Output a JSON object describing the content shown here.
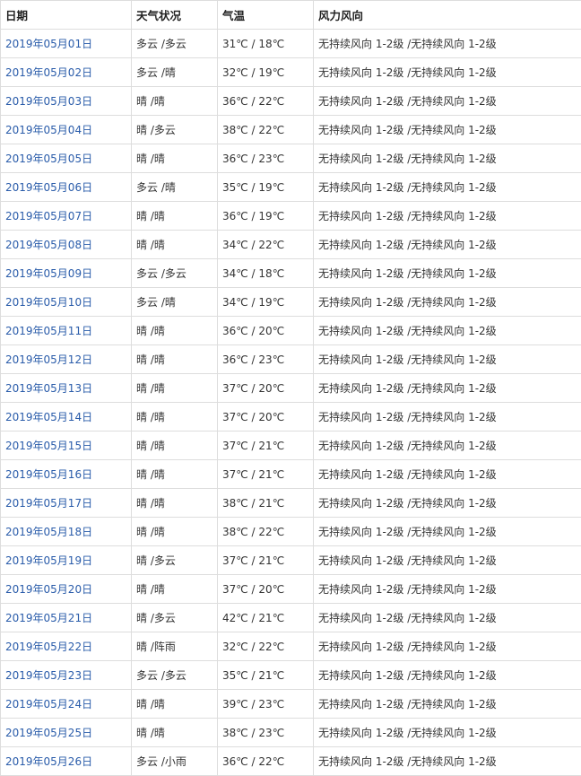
{
  "headers": [
    "日期",
    "天气状况",
    "气温",
    "风力风向"
  ],
  "link_color": "#2a5caa",
  "rows": [
    [
      "2019年05月01日",
      "多云 /多云",
      "31℃ / 18℃",
      "无持续风向 1-2级 /无持续风向 1-2级"
    ],
    [
      "2019年05月02日",
      "多云 /晴",
      "32℃ / 19℃",
      "无持续风向 1-2级 /无持续风向 1-2级"
    ],
    [
      "2019年05月03日",
      "晴 /晴",
      "36℃ / 22℃",
      "无持续风向 1-2级 /无持续风向 1-2级"
    ],
    [
      "2019年05月04日",
      "晴 /多云",
      "38℃ / 22℃",
      "无持续风向 1-2级 /无持续风向 1-2级"
    ],
    [
      "2019年05月05日",
      "晴 /晴",
      "36℃ / 23℃",
      "无持续风向 1-2级 /无持续风向 1-2级"
    ],
    [
      "2019年05月06日",
      "多云 /晴",
      "35℃ / 19℃",
      "无持续风向 1-2级 /无持续风向 1-2级"
    ],
    [
      "2019年05月07日",
      "晴 /晴",
      "36℃ / 19℃",
      "无持续风向 1-2级 /无持续风向 1-2级"
    ],
    [
      "2019年05月08日",
      "晴 /晴",
      "34℃ / 22℃",
      "无持续风向 1-2级 /无持续风向 1-2级"
    ],
    [
      "2019年05月09日",
      "多云 /多云",
      "34℃ / 18℃",
      "无持续风向 1-2级 /无持续风向 1-2级"
    ],
    [
      "2019年05月10日",
      "多云 /晴",
      "34℃ / 19℃",
      "无持续风向 1-2级 /无持续风向 1-2级"
    ],
    [
      "2019年05月11日",
      "晴 /晴",
      "36℃ / 20℃",
      "无持续风向 1-2级 /无持续风向 1-2级"
    ],
    [
      "2019年05月12日",
      "晴 /晴",
      "36℃ / 23℃",
      "无持续风向 1-2级 /无持续风向 1-2级"
    ],
    [
      "2019年05月13日",
      "晴 /晴",
      "37℃ / 20℃",
      "无持续风向 1-2级 /无持续风向 1-2级"
    ],
    [
      "2019年05月14日",
      "晴 /晴",
      "37℃ / 20℃",
      "无持续风向 1-2级 /无持续风向 1-2级"
    ],
    [
      "2019年05月15日",
      "晴 /晴",
      "37℃ / 21℃",
      "无持续风向 1-2级 /无持续风向 1-2级"
    ],
    [
      "2019年05月16日",
      "晴 /晴",
      "37℃ / 21℃",
      "无持续风向 1-2级 /无持续风向 1-2级"
    ],
    [
      "2019年05月17日",
      "晴 /晴",
      "38℃ / 21℃",
      "无持续风向 1-2级 /无持续风向 1-2级"
    ],
    [
      "2019年05月18日",
      "晴 /晴",
      "38℃ / 22℃",
      "无持续风向 1-2级 /无持续风向 1-2级"
    ],
    [
      "2019年05月19日",
      "晴 /多云",
      "37℃ / 21℃",
      "无持续风向 1-2级 /无持续风向 1-2级"
    ],
    [
      "2019年05月20日",
      "晴 /晴",
      "37℃ / 20℃",
      "无持续风向 1-2级 /无持续风向 1-2级"
    ],
    [
      "2019年05月21日",
      "晴 /多云",
      "42℃ / 21℃",
      "无持续风向 1-2级 /无持续风向 1-2级"
    ],
    [
      "2019年05月22日",
      "晴 /阵雨",
      "32℃ / 22℃",
      "无持续风向 1-2级 /无持续风向 1-2级"
    ],
    [
      "2019年05月23日",
      "多云 /多云",
      "35℃ / 21℃",
      "无持续风向 1-2级 /无持续风向 1-2级"
    ],
    [
      "2019年05月24日",
      "晴 /晴",
      "39℃ / 23℃",
      "无持续风向 1-2级 /无持续风向 1-2级"
    ],
    [
      "2019年05月25日",
      "晴 /晴",
      "38℃ / 23℃",
      "无持续风向 1-2级 /无持续风向 1-2级"
    ],
    [
      "2019年05月26日",
      "多云 /小雨",
      "36℃ / 22℃",
      "无持续风向 1-2级 /无持续风向 1-2级"
    ]
  ]
}
